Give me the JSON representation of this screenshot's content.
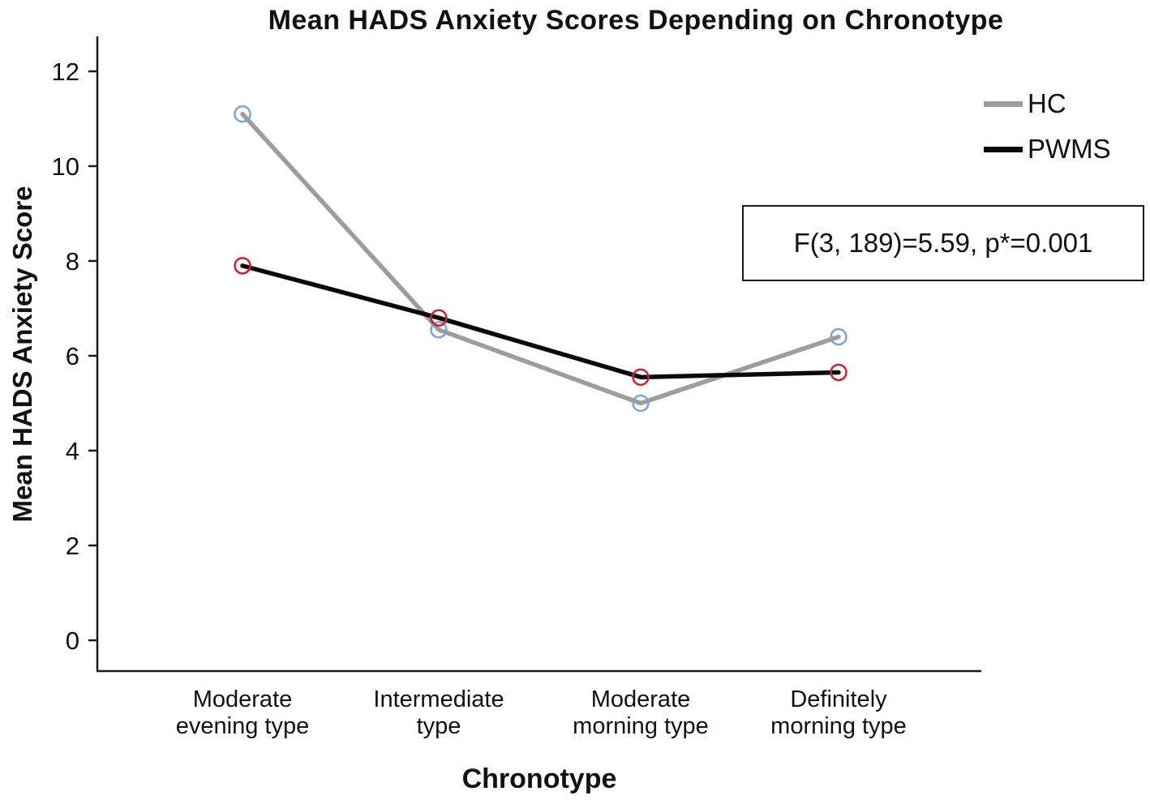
{
  "chart_data": {
    "type": "line",
    "title": "Mean HADS Anxiety Scores Depending on Chronotype",
    "xlabel": "Chronotype",
    "ylabel": "Mean HADS Anxiety Score",
    "categories": [
      "Moderate\nevening type",
      "Intermediate\ntype",
      "Moderate\nmorning type",
      "Definitely\nmorning type"
    ],
    "yticks": [
      0,
      2,
      4,
      6,
      8,
      10,
      12
    ],
    "ylim": [
      0,
      12.5
    ],
    "grid": false,
    "legend_position": "top-right",
    "annotation": "F(3, 189)=5.59, p*=0.001",
    "series": [
      {
        "name": "HC",
        "values": [
          11.1,
          6.55,
          5.0,
          6.4
        ],
        "color": "#9d9d9d",
        "marker": "open-circle",
        "marker_color": "#7ba4d9"
      },
      {
        "name": "PWMS",
        "values": [
          7.9,
          6.8,
          5.55,
          5.65
        ],
        "color": "#0a0a0a",
        "marker": "open-circle",
        "marker_color": "#cf2030"
      }
    ],
    "axis_color": "#1a1a1a"
  }
}
